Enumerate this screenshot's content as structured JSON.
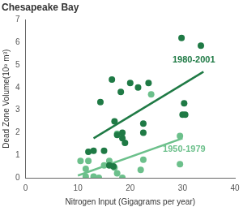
{
  "chart_data": {
    "type": "scatter",
    "title": "Chesapeake Bay",
    "x_label": "Nitrogen Input (Gigagrams per year)",
    "y_label": "Dead Zone Volume(10⁹ m³)",
    "xlim": [
      0,
      40
    ],
    "xticks": [
      0,
      10,
      20,
      30,
      40
    ],
    "ylim": [
      0,
      7
    ],
    "yticks": [
      0,
      1,
      2,
      3,
      4,
      5,
      6,
      7
    ],
    "grid": false,
    "series": [
      {
        "name": "1980-2001",
        "color": "#1f7a45",
        "marker": "circle",
        "points": [
          [
            14.3,
            3.35
          ],
          [
            16.5,
            4.35
          ],
          [
            17,
            2.5
          ],
          [
            18.2,
            3.8
          ],
          [
            20,
            4.2
          ],
          [
            21.5,
            4.0
          ],
          [
            23.5,
            4.2
          ],
          [
            12,
            1.15
          ],
          [
            13,
            1.2
          ],
          [
            15,
            1.2
          ],
          [
            16,
            0.55
          ],
          [
            17.5,
            1.9
          ],
          [
            18.5,
            2.0
          ],
          [
            19,
            1.55
          ],
          [
            18.5,
            1.75
          ],
          [
            22.5,
            2.0
          ],
          [
            22.5,
            2.4
          ],
          [
            29.8,
            6.2
          ],
          [
            33.5,
            5.85
          ],
          [
            30.3,
            3.3
          ],
          [
            30,
            2.8
          ],
          [
            30.5,
            2.8
          ],
          [
            16.8,
            0.5
          ]
        ],
        "trend": [
          [
            13,
            1.75
          ],
          [
            34,
            4.7
          ]
        ]
      },
      {
        "name": "1950-1979",
        "color": "#6cc08b",
        "marker": "circle",
        "points": [
          [
            10.5,
            0.75
          ],
          [
            11.5,
            0.4
          ],
          [
            12,
            0.75
          ],
          [
            13,
            0.05
          ],
          [
            14,
            0
          ],
          [
            15,
            0.55
          ],
          [
            17,
            0.45
          ],
          [
            17.5,
            0.2
          ],
          [
            17.5,
            1.95
          ],
          [
            18.5,
            0
          ],
          [
            22,
            0.35
          ],
          [
            22.5,
            0.8
          ],
          [
            24,
            3.7
          ],
          [
            29.5,
            1.85
          ],
          [
            29.5,
            0.6
          ],
          [
            11.5,
            0.05
          ],
          [
            16,
            0.75
          ]
        ],
        "trend": [
          [
            10,
            0.1
          ],
          [
            30,
            1.75
          ]
        ]
      }
    ]
  }
}
